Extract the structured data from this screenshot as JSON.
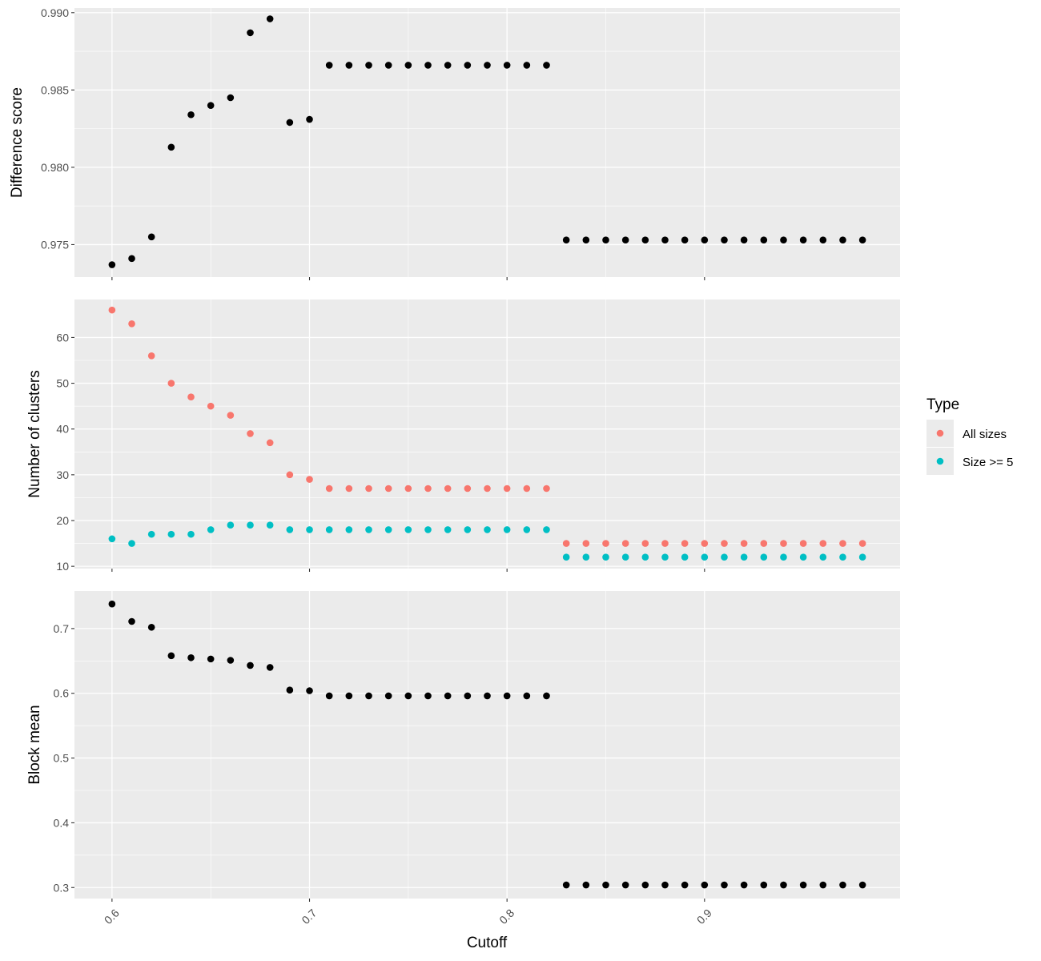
{
  "chart_data": {
    "type": "scatter",
    "xlabel": "Cutoff",
    "x_ticks": [
      "0.6",
      "0.7",
      "0.8",
      "0.9"
    ],
    "x": [
      0.6,
      0.61,
      0.62,
      0.63,
      0.64,
      0.65,
      0.66,
      0.67,
      0.68,
      0.69,
      0.7,
      0.71,
      0.72,
      0.73,
      0.74,
      0.75,
      0.76,
      0.77,
      0.78,
      0.79,
      0.8,
      0.81,
      0.82,
      0.83,
      0.84,
      0.85,
      0.86,
      0.87,
      0.88,
      0.89,
      0.9,
      0.91,
      0.92,
      0.93,
      0.94,
      0.95,
      0.96,
      0.97,
      0.98
    ],
    "xlim": [
      0.581,
      0.999
    ],
    "grid": true,
    "legend": {
      "title": "Type",
      "placement": "right",
      "entries": [
        {
          "label": "All sizes",
          "color": "#F8766D"
        },
        {
          "label": "Size >= 5",
          "color": "#00BFC4"
        }
      ]
    },
    "panels": [
      {
        "ylabel": "Difference score",
        "ylim": [
          0.9729,
          0.9903
        ],
        "y_ticks": [
          "0.975",
          "0.980",
          "0.985",
          "0.990"
        ],
        "series": [
          {
            "color": "#000000",
            "values": [
              0.9737,
              0.9741,
              0.9755,
              0.9813,
              0.9834,
              0.984,
              0.9845,
              0.9887,
              0.9896,
              0.9829,
              0.9831,
              0.9866,
              0.9866,
              0.9866,
              0.9866,
              0.9866,
              0.9866,
              0.9866,
              0.9866,
              0.9866,
              0.9866,
              0.9866,
              0.9866,
              0.9753,
              0.9753,
              0.9753,
              0.9753,
              0.9753,
              0.9753,
              0.9753,
              0.9753,
              0.9753,
              0.9753,
              0.9753,
              0.9753,
              0.9753,
              0.9753,
              0.9753,
              0.9753
            ]
          }
        ]
      },
      {
        "ylabel": "Number of clusters",
        "ylim": [
          9.5,
          68.3
        ],
        "y_ticks": [
          "10",
          "20",
          "30",
          "40",
          "50",
          "60"
        ],
        "series": [
          {
            "name": "All sizes",
            "color": "#F8766D",
            "values": [
              66,
              63,
              56,
              50,
              47,
              45,
              43,
              39,
              37,
              30,
              29,
              27,
              27,
              27,
              27,
              27,
              27,
              27,
              27,
              27,
              27,
              27,
              27,
              15,
              15,
              15,
              15,
              15,
              15,
              15,
              15,
              15,
              15,
              15,
              15,
              15,
              15,
              15,
              15
            ]
          },
          {
            "name": "Size >= 5",
            "color": "#00BFC4",
            "values": [
              16,
              15,
              17,
              17,
              17,
              18,
              19,
              19,
              19,
              18,
              18,
              18,
              18,
              18,
              18,
              18,
              18,
              18,
              18,
              18,
              18,
              18,
              18,
              12,
              12,
              12,
              12,
              12,
              12,
              12,
              12,
              12,
              12,
              12,
              12,
              12,
              12,
              12,
              12
            ]
          }
        ]
      },
      {
        "ylabel": "Block mean",
        "ylim": [
          0.283,
          0.758
        ],
        "y_ticks": [
          "0.3",
          "0.4",
          "0.5",
          "0.6",
          "0.7"
        ],
        "series": [
          {
            "color": "#000000",
            "values": [
              0.738,
              0.711,
              0.702,
              0.658,
              0.655,
              0.653,
              0.651,
              0.643,
              0.64,
              0.605,
              0.604,
              0.596,
              0.596,
              0.596,
              0.596,
              0.596,
              0.596,
              0.596,
              0.596,
              0.596,
              0.596,
              0.596,
              0.596,
              0.304,
              0.304,
              0.304,
              0.304,
              0.304,
              0.304,
              0.304,
              0.304,
              0.304,
              0.304,
              0.304,
              0.304,
              0.304,
              0.304,
              0.304,
              0.304
            ]
          }
        ]
      }
    ]
  }
}
